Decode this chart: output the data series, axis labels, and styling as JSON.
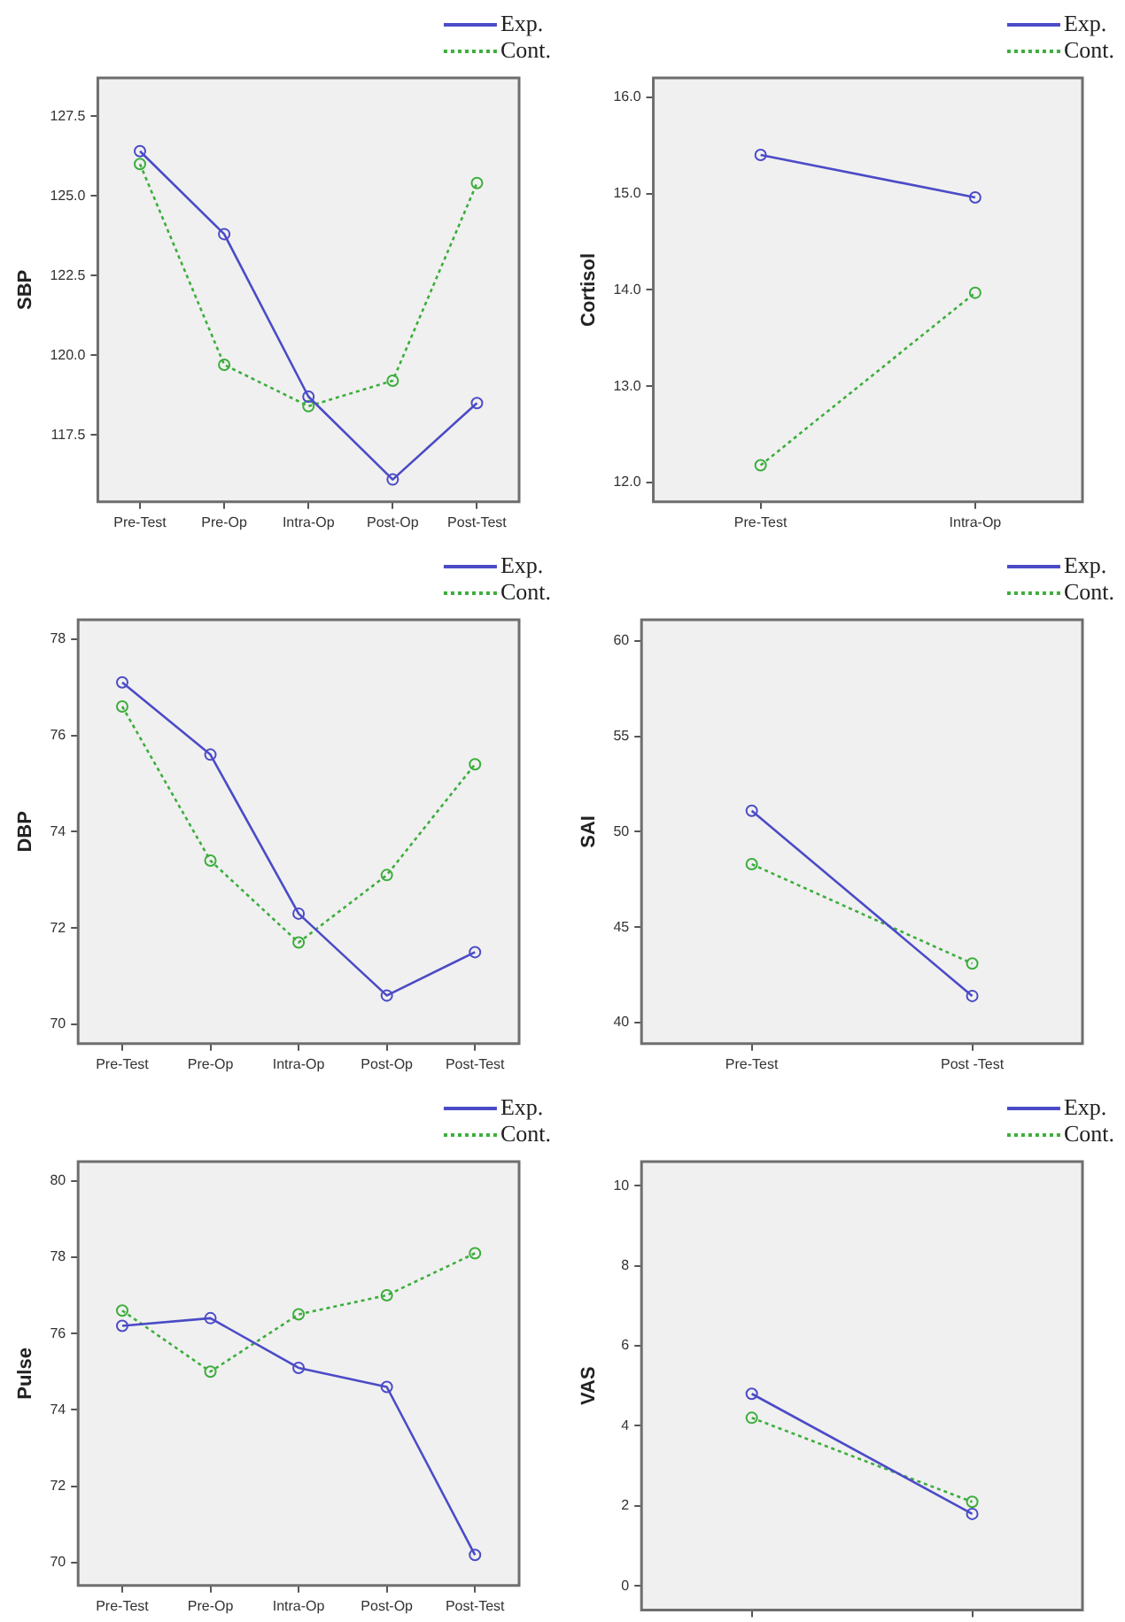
{
  "chart_data": [
    {
      "type": "line",
      "ylabel": "SBP",
      "categories": [
        "Pre-Test",
        "Pre-Op",
        "Intra-Op",
        "Post-Op",
        "Post-Test"
      ],
      "ylim": [
        115.4,
        128.7
      ],
      "yticks": [
        {
          "value": 117.5,
          "label": "117.5"
        },
        {
          "value": 120,
          "label": "120.0"
        },
        {
          "value": 122.5,
          "label": "122.5"
        },
        {
          "value": 125,
          "label": "125.0"
        },
        {
          "value": 127.5,
          "label": "127.5"
        }
      ],
      "marker": "circle",
      "legend": "top right",
      "grid": false,
      "series": [
        {
          "name": "Exp.",
          "color": "#4b4bc8",
          "line_style": "solid",
          "values": [
            126.4,
            123.8,
            118.7,
            116.1,
            118.5
          ]
        },
        {
          "name": "Cont.",
          "color": "#3cae3c",
          "line_style": "dotted",
          "values": [
            126.0,
            119.7,
            118.4,
            119.2,
            125.4
          ]
        }
      ]
    },
    {
      "type": "line",
      "ylabel": "Cortisol",
      "categories": [
        "Pre-Test",
        "Intra-Op"
      ],
      "ylim": [
        11.8,
        16.2
      ],
      "yticks": [
        {
          "value": 12,
          "label": "12.0"
        },
        {
          "value": 13,
          "label": "13.0"
        },
        {
          "value": 14,
          "label": "14.0"
        },
        {
          "value": 15,
          "label": "15.0"
        },
        {
          "value": 16,
          "label": "16.0"
        }
      ],
      "marker": "circle",
      "legend": "top right",
      "grid": false,
      "series": [
        {
          "name": "Exp.",
          "color": "#4b4bc8",
          "line_style": "solid",
          "values": [
            15.4,
            14.96
          ]
        },
        {
          "name": "Cont.",
          "color": "#3cae3c",
          "line_style": "dotted",
          "values": [
            12.18,
            13.97
          ]
        }
      ]
    },
    {
      "type": "line",
      "ylabel": "DBP",
      "categories": [
        "Pre-Test",
        "Pre-Op",
        "Intra-Op",
        "Post-Op",
        "Post-Test"
      ],
      "ylim": [
        69.6,
        78.4
      ],
      "yticks": [
        70,
        72,
        74,
        76,
        78
      ],
      "marker": "circle",
      "legend": "top right",
      "grid": false,
      "series": [
        {
          "name": "Exp.",
          "color": "#4b4bc8",
          "line_style": "solid",
          "values": [
            77.1,
            75.6,
            72.3,
            70.6,
            71.5
          ]
        },
        {
          "name": "Cont.",
          "color": "#3cae3c",
          "line_style": "dotted",
          "values": [
            76.6,
            73.4,
            71.7,
            73.1,
            75.4
          ]
        }
      ]
    },
    {
      "type": "line",
      "ylabel": "SAI",
      "categories": [
        "Pre-Test",
        "Post -Test"
      ],
      "ylim": [
        38.9,
        61.1
      ],
      "yticks": [
        40,
        45,
        50,
        55,
        60
      ],
      "marker": "circle",
      "legend": "top right",
      "grid": false,
      "series": [
        {
          "name": "Exp.",
          "color": "#4b4bc8",
          "line_style": "solid",
          "values": [
            51.1,
            41.4
          ]
        },
        {
          "name": "Cont.",
          "color": "#3cae3c",
          "line_style": "dotted",
          "values": [
            48.3,
            43.1
          ]
        }
      ]
    },
    {
      "type": "line",
      "ylabel": "Pulse",
      "categories": [
        "Pre-Test",
        "Pre-Op",
        "Intra-Op",
        "Post-Op",
        "Post-Test"
      ],
      "ylim": [
        69.4,
        80.5
      ],
      "yticks": [
        70,
        72,
        74,
        76,
        78,
        80
      ],
      "marker": "circle",
      "legend": "top right",
      "grid": false,
      "series": [
        {
          "name": "Exp.",
          "color": "#4b4bc8",
          "line_style": "solid",
          "values": [
            76.2,
            76.4,
            75.1,
            74.6,
            70.2
          ]
        },
        {
          "name": "Cont.",
          "color": "#3cae3c",
          "line_style": "dotted",
          "values": [
            76.6,
            75.0,
            76.5,
            77.0,
            78.1
          ]
        }
      ]
    },
    {
      "type": "line",
      "ylabel": "VAS",
      "categories": [
        null,
        null
      ],
      "ylim": [
        -0.6,
        10.6
      ],
      "yticks": [
        0,
        2,
        4,
        6,
        8,
        10
      ],
      "tick_labels": "y",
      "marker": "circle",
      "legend": "top right",
      "grid": false,
      "series": [
        {
          "name": "Exp.",
          "color": "#4b4bc8",
          "line_style": "solid",
          "values": [
            4.8,
            1.8
          ]
        },
        {
          "name": "Cont.",
          "color": "#3cae3c",
          "line_style": "dotted",
          "values": [
            4.2,
            2.1
          ]
        }
      ]
    }
  ]
}
